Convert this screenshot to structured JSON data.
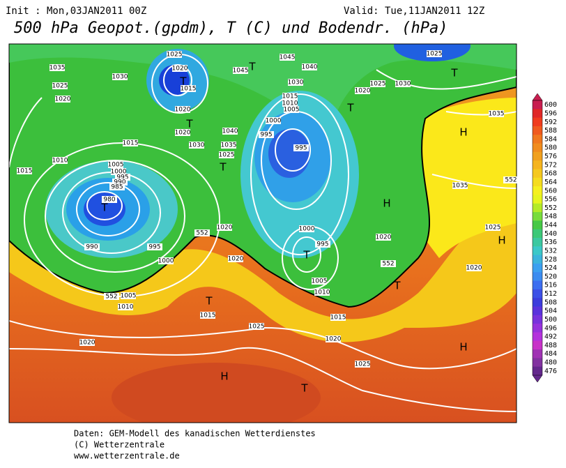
{
  "header": {
    "init": "Init : Mon,03JAN2011 00Z",
    "valid": "Valid: Tue,11JAN2011 12Z",
    "title": "500 hPa Geopot.(gpdm), T (C) und Bodendr. (hPa)"
  },
  "colorbar": {
    "ticks": [
      "600",
      "596",
      "592",
      "588",
      "584",
      "580",
      "576",
      "572",
      "568",
      "564",
      "560",
      "556",
      "552",
      "548",
      "544",
      "540",
      "536",
      "532",
      "528",
      "524",
      "520",
      "516",
      "512",
      "508",
      "504",
      "500",
      "496",
      "492",
      "488",
      "484",
      "480",
      "476"
    ]
  },
  "map": {
    "pressure_labels": [
      "1035",
      "1025",
      "1030",
      "1025",
      "1020",
      "1020",
      "1015",
      "1020",
      "1020",
      "1030",
      "1040",
      "1035",
      "1025",
      "1045",
      "1045",
      "1040",
      "1030",
      "1015",
      "1010",
      "1005",
      "1000",
      "995",
      "995",
      "1020",
      "1025",
      "1030",
      "1025",
      "1035",
      "1035",
      "1025",
      "1020",
      "1015",
      "1010",
      "1015",
      "1005",
      "1000",
      "995",
      "990",
      "985",
      "980",
      "990",
      "995",
      "1000",
      "1020",
      "1020",
      "1005",
      "1010",
      "1015",
      "1025",
      "1020",
      "1020",
      "1015",
      "1025",
      "1000",
      "995",
      "1005",
      "1010",
      "1020",
      "552",
      "552",
      "552",
      "552"
    ],
    "markers": [
      "T",
      "T",
      "T",
      "T",
      "T",
      "T",
      "T",
      "T",
      "T",
      "T",
      "T",
      "H",
      "H",
      "H",
      "H",
      "H"
    ]
  },
  "footer": {
    "lines": [
      "Daten: GEM-Modell des kanadischen Wetterdienstes",
      "(C) Wetterzentrale",
      "www.wetterzentrale.de"
    ]
  }
}
